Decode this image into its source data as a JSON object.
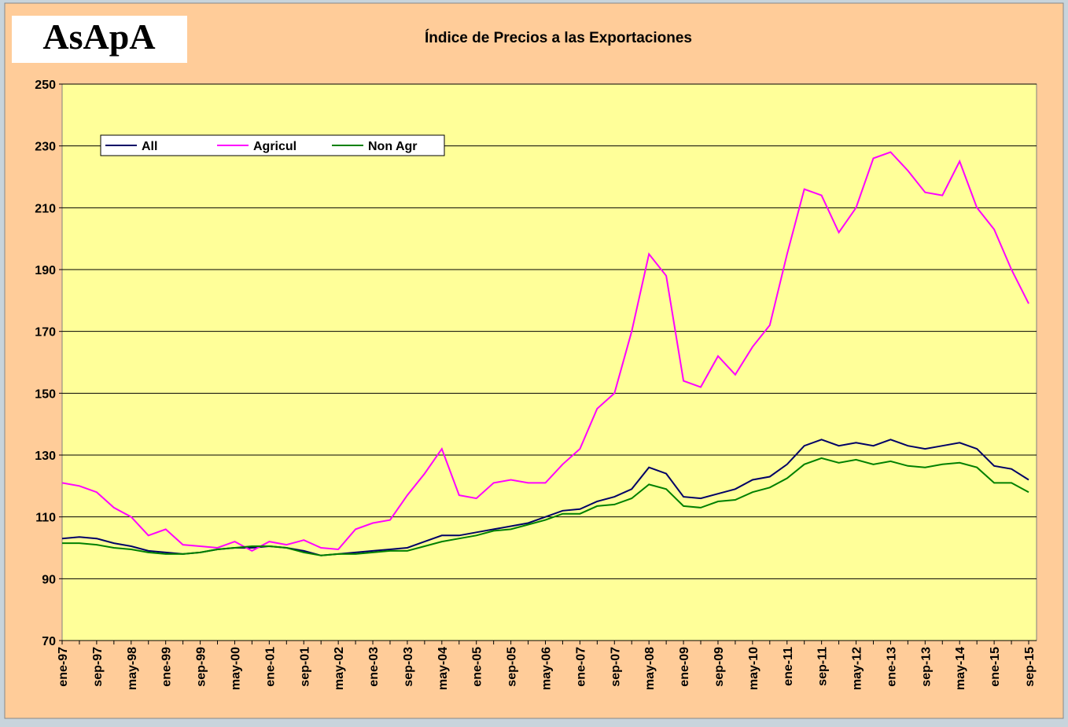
{
  "logo": "AsApA",
  "chart_data": {
    "type": "line",
    "title": "Índice de Precios a las Exportaciones",
    "categories": [
      "ene-97",
      null,
      "sep-97",
      null,
      "may-98",
      null,
      "ene-99",
      null,
      "sep-99",
      null,
      "may-00",
      null,
      "ene-01",
      null,
      "sep-01",
      null,
      "may-02",
      null,
      "ene-03",
      null,
      "sep-03",
      null,
      "may-04",
      null,
      "ene-05",
      null,
      "sep-05",
      null,
      "may-06",
      null,
      "ene-07",
      null,
      "sep-07",
      null,
      "may-08",
      null,
      "ene-09",
      null,
      "sep-09",
      null,
      "may-10",
      null,
      "ene-11",
      null,
      "sep-11",
      null,
      "may-12",
      null,
      "ene-13",
      null,
      "sep-13",
      null,
      "may-14",
      null,
      "ene-15",
      null,
      "sep-15"
    ],
    "series": [
      {
        "name": "All",
        "color": "#000066",
        "values": [
          103,
          103.5,
          103,
          101.5,
          100.5,
          99,
          98.5,
          98,
          98.5,
          99.5,
          100,
          100,
          100.5,
          100,
          99,
          97.5,
          98,
          98.5,
          99,
          99.5,
          100,
          102,
          104,
          104,
          105,
          106,
          107,
          108,
          110,
          112,
          112.5,
          115,
          116.5,
          119,
          126,
          124,
          116.5,
          116,
          117.5,
          119,
          122,
          123,
          127,
          133,
          135,
          133,
          134,
          133,
          135,
          133,
          132,
          133,
          134,
          132,
          126.5,
          125.5,
          122
        ]
      },
      {
        "name": "Agricul",
        "color": "#ff00ff",
        "values": [
          121,
          120,
          118,
          113,
          110,
          104,
          106,
          101,
          100.5,
          100,
          102,
          99,
          102,
          101,
          102.5,
          100,
          99.5,
          106,
          108,
          109,
          117,
          124,
          132,
          117,
          116,
          121,
          122,
          121,
          121,
          127,
          132,
          145,
          150,
          170,
          195,
          188,
          154,
          152,
          162,
          156,
          165,
          172,
          195,
          216,
          214,
          202,
          210,
          226,
          228,
          222,
          215,
          214,
          225,
          210,
          203,
          190,
          179
        ]
      },
      {
        "name": "Non Agr",
        "color": "#008000",
        "values": [
          101.5,
          101.5,
          101,
          100,
          99.5,
          98.5,
          98,
          98,
          98.5,
          99.5,
          100,
          100.5,
          100.5,
          100,
          98.5,
          97.5,
          98,
          98,
          98.5,
          99,
          99,
          100.5,
          102,
          103,
          104,
          105.5,
          106,
          107.5,
          109,
          111,
          111,
          113.5,
          114,
          116,
          120.5,
          119,
          113.5,
          113,
          115,
          115.5,
          118,
          119.5,
          122.5,
          127,
          129,
          127.5,
          128.5,
          127,
          128,
          126.5,
          126,
          127,
          127.5,
          126,
          121,
          121,
          118
        ]
      }
    ],
    "ylim": [
      70,
      250
    ],
    "yticks": [
      70,
      90,
      110,
      130,
      150,
      170,
      190,
      210,
      230,
      250
    ],
    "grid": true,
    "legend": "upper left"
  }
}
